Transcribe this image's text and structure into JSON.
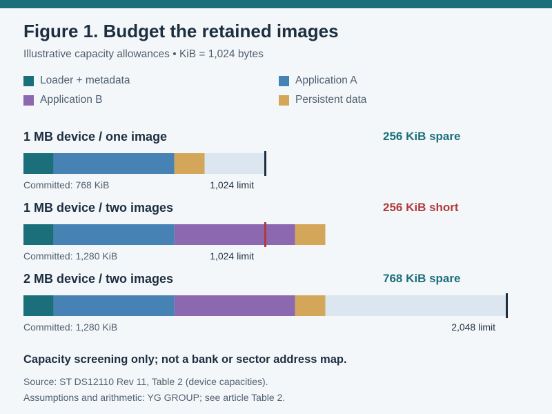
{
  "figure": {
    "title": "Figure 1. Budget the retained images",
    "subtitle": "Illustrative capacity allowances • KiB = 1,024 bytes"
  },
  "colors": {
    "accent": "#1a6f7a",
    "loader": "#1a6f7a",
    "app_a": "#4682b4",
    "app_b": "#8c68b0",
    "persistent": "#d4a659",
    "spare": "#dce6f0",
    "limit_ok": "#1c2e40",
    "limit_over": "#b03a3a",
    "status_ok": "#1a6f7a",
    "status_short": "#b03a3a"
  },
  "legend": [
    {
      "key": "loader",
      "label": "Loader + metadata"
    },
    {
      "key": "app_a",
      "label": "Application A"
    },
    {
      "key": "app_b",
      "label": "Application B"
    },
    {
      "key": "persistent",
      "label": "Persistent data"
    }
  ],
  "chart_data": {
    "type": "bar",
    "orientation": "horizontal",
    "stacked": true,
    "unit": "KiB",
    "segment_names": [
      "Loader + metadata",
      "Application A",
      "Application B",
      "Persistent data"
    ],
    "panels": [
      {
        "title": "1 MB device / one image",
        "status": "256 KiB spare",
        "status_kind": "spare",
        "limit": 1024,
        "limit_label": "1,024 limit",
        "committed_label": "Committed: 768 KiB",
        "segments": [
          {
            "key": "loader",
            "value": 128
          },
          {
            "key": "app_a",
            "value": 512
          },
          {
            "key": "persistent",
            "value": 128
          }
        ]
      },
      {
        "title": "1 MB device / two images",
        "status": "256 KiB short",
        "status_kind": "short",
        "limit": 1024,
        "limit_label": "1,024 limit",
        "committed_label": "Committed: 1,280 KiB",
        "segments": [
          {
            "key": "loader",
            "value": 128
          },
          {
            "key": "app_a",
            "value": 512
          },
          {
            "key": "app_b",
            "value": 512
          },
          {
            "key": "persistent",
            "value": 128
          }
        ]
      },
      {
        "title": "2 MB device / two images",
        "status": "768 KiB spare",
        "status_kind": "spare",
        "limit": 2048,
        "limit_label": "2,048 limit",
        "committed_label": "Committed: 1,280 KiB",
        "segments": [
          {
            "key": "loader",
            "value": 128
          },
          {
            "key": "app_a",
            "value": 512
          },
          {
            "key": "app_b",
            "value": 512
          },
          {
            "key": "persistent",
            "value": 128
          }
        ]
      }
    ]
  },
  "footer": {
    "note": "Capacity screening only; not a bank or sector address map.",
    "source_1": "Source: ST DS12110 Rev 11, Table 2 (device capacities).",
    "source_2": "Assumptions and arithmetic: YG GROUP; see article Table 2."
  }
}
